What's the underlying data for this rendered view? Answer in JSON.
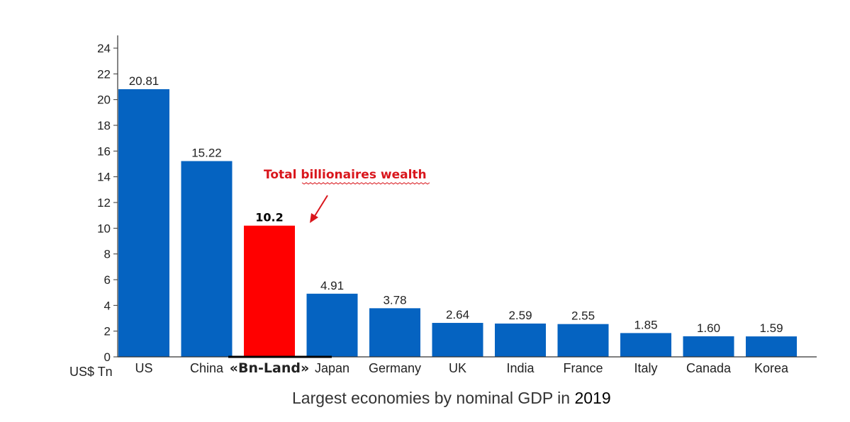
{
  "chart_data": {
    "type": "bar",
    "categories": [
      "US",
      "China",
      "«Bn-Land»",
      "Japan",
      "Germany",
      "UK",
      "India",
      "France",
      "Italy",
      "Canada",
      "Korea"
    ],
    "values": [
      20.81,
      15.22,
      10.2,
      4.91,
      3.78,
      2.64,
      2.59,
      2.55,
      1.85,
      1.6,
      1.59
    ],
    "value_labels": [
      "20.81",
      "15.22",
      "10.2",
      "4.91",
      "3.78",
      "2.64",
      "2.59",
      "2.55",
      "1.85",
      "1.60",
      "1.59"
    ],
    "highlight_index": 2,
    "ylabel": "US$ Tn",
    "ylim": [
      0,
      24
    ],
    "yticks": [
      "0",
      "2",
      "4",
      "6",
      "8",
      "10",
      "12",
      "14",
      "16",
      "18",
      "20",
      "22",
      "24"
    ],
    "grid": false,
    "annotation": {
      "text": "Total billionaires wealth",
      "target": "«Bn-Land»"
    },
    "caption": {
      "text": "Largest economies by nominal GDP in ",
      "year": "2019"
    },
    "colors": {
      "bar": "#0563C1",
      "highlight": "#FF0000",
      "annotation": "#D9161C",
      "axis": "#333333"
    }
  }
}
